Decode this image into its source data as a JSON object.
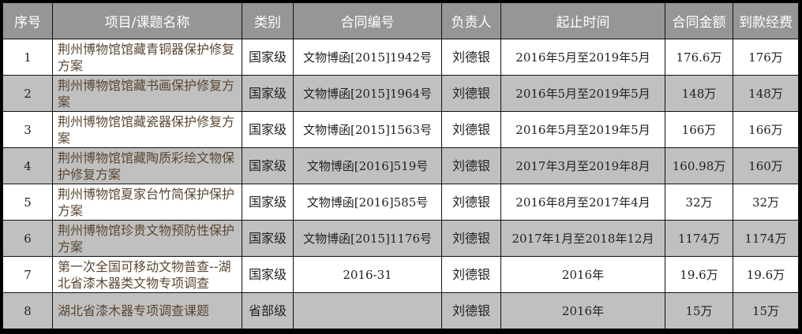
{
  "headers": [
    "序号",
    "项目/课题名称",
    "类别",
    "合同编号",
    "负责人",
    "起止时间",
    "合同金额",
    "到款经费"
  ],
  "rows": [
    {
      "no": "1",
      "name": "荆州博物馆馆藏青铜器保护修复方案",
      "category": "国家级",
      "contract": "文物博函[2015]1942号",
      "person": "刘德银",
      "period": "2016年5月至2019年5月",
      "amount": "176.6万",
      "received": "176万"
    },
    {
      "no": "2",
      "name": "荆州博物馆馆藏书画保护修复方案",
      "category": "国家级",
      "contract": "文物博函[2015]1964号",
      "person": "刘德银",
      "period": "2016年5月至2019年5月",
      "amount": "148万",
      "received": "148万"
    },
    {
      "no": "3",
      "name": "荆州博物馆馆藏瓷器保护修复方案",
      "category": "国家级",
      "contract": "文物博函[2015]1563号",
      "person": "刘德银",
      "period": "2016年5月至2019年5月",
      "amount": "166万",
      "received": "166万"
    },
    {
      "no": "4",
      "name": "荆州博物馆馆藏陶质彩绘文物保护修复方案",
      "category": "国家级",
      "contract": "文物博函[2016]519号",
      "person": "刘德银",
      "period": "2017年3月至2019年8月",
      "amount": "160.98万",
      "received": "160万"
    },
    {
      "no": "5",
      "name": "荆州博物馆夏家台竹简保护保护方案",
      "category": "国家级",
      "contract": "文物博函[2016]585号",
      "person": "刘德银",
      "period": "2016年8月至2017年4月",
      "amount": "32万",
      "received": "32万"
    },
    {
      "no": "6",
      "name": "荆州博物馆珍贵文物预防性保护方案",
      "category": "国家级",
      "contract": "文物博函[2015]1176号",
      "person": "刘德银",
      "period": "2017年1月至2018年12月",
      "amount": "1174万",
      "received": "1174万"
    },
    {
      "no": "7",
      "name": "第一次全国可移动文物普查--湖北省漆木器类文物专项调查",
      "category": "国家级",
      "contract": "2016-31",
      "person": "刘德银",
      "period": "2016年",
      "amount": "19.6万",
      "received": "19.6万"
    },
    {
      "no": "8",
      "name": "湖北省漆木器专项调查课题",
      "category": "省部级",
      "contract": "",
      "person": "刘德银",
      "period": "2016年",
      "amount": "15万",
      "received": "15万"
    }
  ],
  "colors": {
    "header_bg": "#969696",
    "alt_row_bg": "#c0c0c0",
    "name_text": "#5a4632"
  }
}
